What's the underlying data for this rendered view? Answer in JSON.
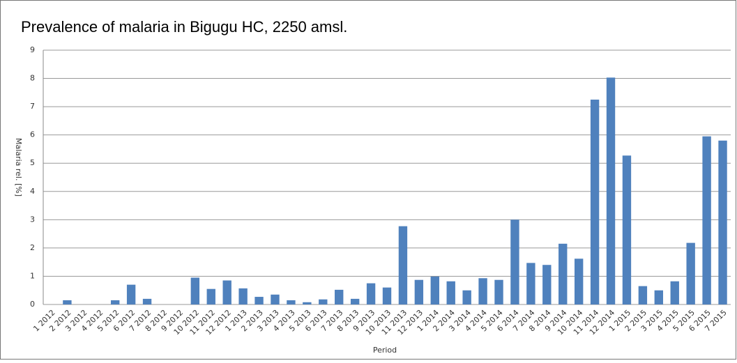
{
  "chart_data": {
    "type": "bar",
    "title": "Prevalence of malaria in Bigugu HC, 2250 amsl.",
    "x_label": "Period",
    "y_label": "Malaria rel. [%]",
    "categories": [
      "1 2012",
      "2 2012",
      "3 2012",
      "4 2012",
      "5 2012",
      "6 2012",
      "7 2012",
      "8 2012",
      "9 2012",
      "10 2012",
      "11 2012",
      "12 2012",
      "1 2013",
      "2 2013",
      "3 2013",
      "4 2013",
      "5 2013",
      "6 2013",
      "7 2013",
      "8 2013",
      "9 2013",
      "10 2013",
      "11 2013",
      "12 2013",
      "1 2014",
      "2 2014",
      "3 2014",
      "4 2014",
      "5 2014",
      "6 2014",
      "7 2014",
      "8 2014",
      "9 2014",
      "10 2014",
      "11 2014",
      "12 2014",
      "1 2015",
      "2 2015",
      "3 2015",
      "4 2015",
      "5 2015",
      "6 2015",
      "7 2015"
    ],
    "values": [
      0,
      0.15,
      0,
      0,
      0.15,
      0.7,
      0.2,
      0,
      0,
      0.95,
      0.55,
      0.85,
      0.57,
      0.27,
      0.35,
      0.15,
      0.08,
      0.18,
      0.52,
      0.2,
      0.75,
      0.6,
      2.77,
      0.87,
      0.99,
      0.82,
      0.5,
      0.93,
      0.87,
      3.0,
      1.47,
      1.4,
      2.15,
      1.62,
      7.25,
      8.03,
      5.27,
      0.65,
      0.5,
      0.82,
      2.18,
      5.95,
      5.8
    ],
    "color": "#4f81bd",
    "ylim": [
      0,
      9
    ],
    "yticks": [
      0,
      1,
      2,
      3,
      4,
      5,
      6,
      7,
      8,
      9
    ],
    "grid": true
  }
}
